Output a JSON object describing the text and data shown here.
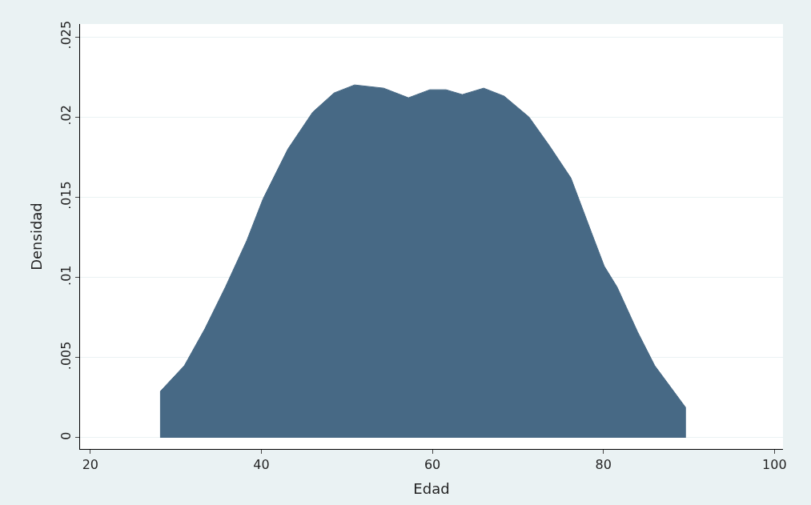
{
  "chart_data": {
    "type": "area",
    "xlabel": "Edad",
    "ylabel": "Densidad",
    "x": [
      28.2,
      28.2,
      31,
      33.4,
      35.8,
      38.3,
      40.2,
      43.1,
      46,
      48.5,
      50.9,
      54.3,
      57.2,
      59.7,
      61.6,
      63.5,
      66,
      68.4,
      71.3,
      73.7,
      76.2,
      78.6,
      80.1,
      81.6,
      84,
      86,
      87.8,
      89.6,
      89.6
    ],
    "series": [
      {
        "color": "#476985",
        "values": [
          0,
          0.0029,
          0.0045,
          0.0068,
          0.0094,
          0.0123,
          0.0149,
          0.018,
          0.0203,
          0.0215,
          0.022,
          0.0218,
          0.0212,
          0.0217,
          0.0217,
          0.0214,
          0.0218,
          0.0213,
          0.02,
          0.0182,
          0.0162,
          0.0128,
          0.0107,
          0.0094,
          0.0066,
          0.0045,
          0.0032,
          0.0019,
          0
        ]
      }
    ],
    "xlim": [
      18.8,
      101
    ],
    "xticks": [
      20,
      40,
      60,
      80,
      100
    ],
    "ylim": [
      -0.0007,
      0.0258
    ],
    "yticks": [
      0,
      {
        "value": 0.005,
        "label": ".005"
      },
      {
        "value": 0.01,
        "label": ".01"
      },
      {
        "value": 0.015,
        "label": ".015"
      },
      {
        "value": 0.02,
        "label": ".02"
      },
      {
        "value": 0.025,
        "label": ".025"
      }
    ],
    "grid": "y"
  }
}
